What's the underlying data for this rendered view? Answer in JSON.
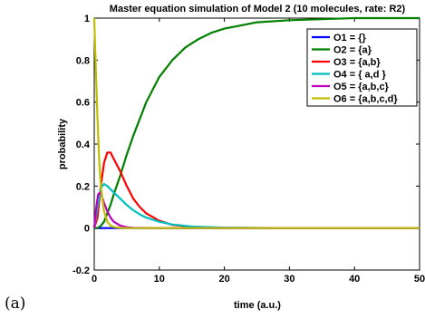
{
  "panel_label": "(a)",
  "chart_data": {
    "type": "line",
    "title": "Master equation simulation of Model 2 (10 molecules, rate: R2)",
    "xlabel": "time (a.u.)",
    "ylabel": "probability",
    "xlim": [
      0,
      50
    ],
    "ylim": [
      -0.2,
      1
    ],
    "xticks": [
      0,
      10,
      20,
      30,
      40,
      50
    ],
    "yticks": [
      -0.2,
      0,
      0.2,
      0.4,
      0.6,
      0.8,
      1
    ],
    "xtick_labels": [
      "0",
      "10",
      "20",
      "30",
      "40",
      "50"
    ],
    "ytick_labels": [
      "-0.2",
      "0",
      "0.2",
      "0.4",
      "0.6",
      "0.8",
      "1"
    ],
    "grid": false,
    "legend_position": "top-right",
    "series": [
      {
        "name": "O1 = {}",
        "color": "#0000ff",
        "x": [
          0,
          1,
          2,
          3,
          5,
          10,
          20,
          30,
          40,
          50
        ],
        "y": [
          0,
          0,
          0,
          0,
          0,
          0,
          0,
          0,
          0,
          0
        ]
      },
      {
        "name": "O2 = {a}",
        "color": "#008000",
        "x": [
          0,
          0.5,
          1,
          1.5,
          2,
          2.5,
          3,
          4,
          5,
          6,
          7,
          8,
          9,
          10,
          12,
          14,
          16,
          18,
          20,
          25,
          30,
          40,
          50
        ],
        "y": [
          0,
          0.0,
          0.01,
          0.03,
          0.07,
          0.11,
          0.16,
          0.25,
          0.35,
          0.44,
          0.52,
          0.6,
          0.66,
          0.72,
          0.8,
          0.86,
          0.9,
          0.93,
          0.95,
          0.98,
          0.99,
          1.0,
          1.0
        ]
      },
      {
        "name": "O3 = {a,b}",
        "color": "#ff0000",
        "x": [
          0,
          0.5,
          1,
          1.5,
          2,
          2.5,
          3,
          4,
          5,
          6,
          7,
          8,
          10,
          12,
          15,
          20,
          30,
          40,
          50
        ],
        "y": [
          0,
          0.05,
          0.2,
          0.31,
          0.36,
          0.36,
          0.33,
          0.27,
          0.2,
          0.14,
          0.1,
          0.07,
          0.035,
          0.015,
          0.006,
          0.001,
          0,
          0,
          0
        ]
      },
      {
        "name": "O4 = { a,d }",
        "color": "#00bfbf",
        "x": [
          0,
          0.5,
          1,
          1.5,
          2,
          3,
          4,
          5,
          6,
          7,
          8,
          10,
          12,
          15,
          20,
          30,
          40,
          50
        ],
        "y": [
          0,
          0.1,
          0.19,
          0.21,
          0.2,
          0.17,
          0.14,
          0.11,
          0.085,
          0.065,
          0.05,
          0.03,
          0.017,
          0.007,
          0.002,
          0,
          0,
          0
        ]
      },
      {
        "name": "O5 = {a,b,c}",
        "color": "#bf00bf",
        "x": [
          0,
          0.3,
          0.6,
          0.9,
          1.2,
          1.5,
          2,
          2.5,
          3,
          4,
          5,
          6,
          10,
          20,
          30,
          40,
          50
        ],
        "y": [
          0,
          0.1,
          0.16,
          0.17,
          0.15,
          0.12,
          0.08,
          0.05,
          0.03,
          0.012,
          0.004,
          0.001,
          0,
          0,
          0,
          0,
          0
        ]
      },
      {
        "name": "O6 = {a,b,c,d}",
        "color": "#bfbf00",
        "x": [
          0,
          0.25,
          0.5,
          0.75,
          1,
          1.5,
          2,
          2.5,
          3,
          4,
          5,
          6,
          10,
          20,
          30,
          40,
          50
        ],
        "y": [
          1,
          0.75,
          0.52,
          0.33,
          0.2,
          0.08,
          0.03,
          0.012,
          0.005,
          0.001,
          0,
          0,
          0,
          0,
          0,
          0,
          0
        ]
      }
    ]
  }
}
